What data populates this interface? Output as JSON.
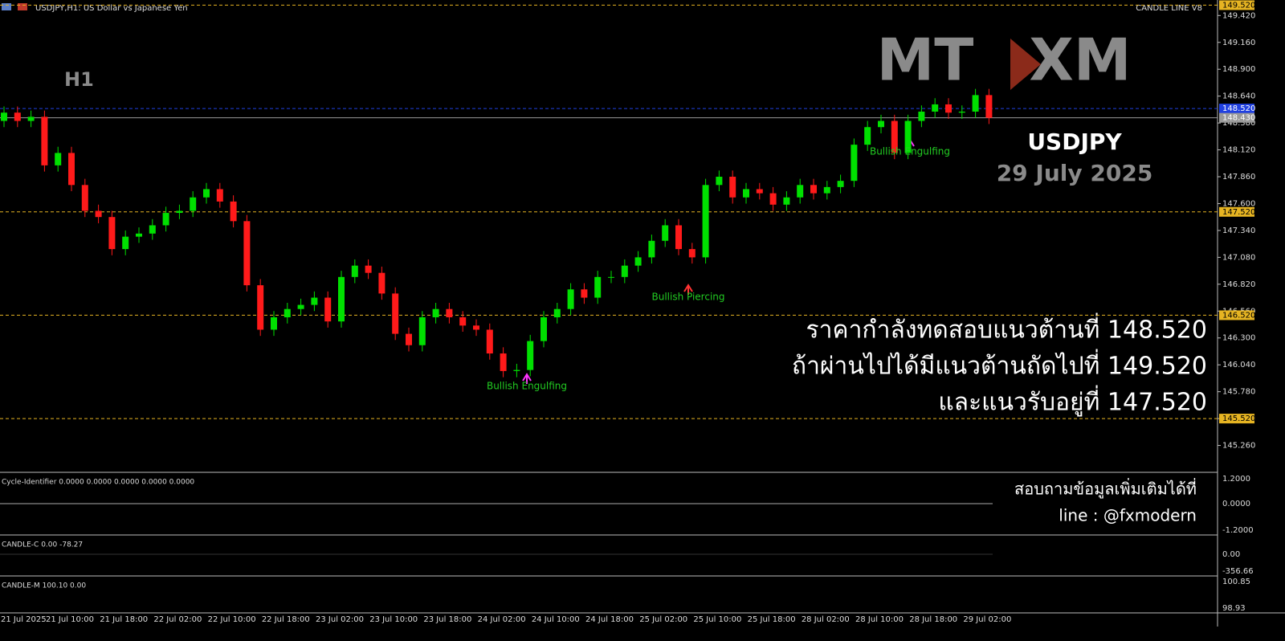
{
  "header": {
    "symbol": "USDJPY,H1: US Dollar vs Japanese Yen",
    "indicator": "CANDLE LINE V8"
  },
  "logos": [
    "MT",
    "XM"
  ],
  "timeframe": "H1",
  "chart_data": {
    "type": "candlestick",
    "title": "USDJPY",
    "subtitle": "29 July 2025",
    "open": [
      148.4,
      148.48,
      148.4,
      148.44,
      147.97,
      148.09,
      147.78,
      147.53,
      147.47,
      147.16,
      147.28,
      147.31,
      147.39,
      147.51,
      147.53,
      147.66,
      147.74,
      147.62,
      147.43,
      146.81,
      146.38,
      146.5,
      146.58,
      146.62,
      146.69,
      146.46,
      146.89,
      147.0,
      146.93,
      146.73,
      146.34,
      146.23,
      146.5,
      146.58,
      146.5,
      146.42,
      146.38,
      146.15,
      145.98,
      145.99,
      146.27,
      146.5,
      146.58,
      146.77,
      146.69,
      146.89,
      146.89,
      147.0,
      147.08,
      147.24,
      147.39,
      147.16,
      147.08,
      147.78,
      147.86,
      147.66,
      147.74,
      147.7,
      147.59,
      147.66,
      147.78,
      147.7,
      147.76,
      147.82,
      148.17,
      148.34,
      148.4,
      148.09,
      148.4,
      148.49,
      148.56,
      148.48,
      148.49,
      148.65
    ],
    "high": [
      148.54,
      148.54,
      148.5,
      148.5,
      148.15,
      148.15,
      147.84,
      147.59,
      147.53,
      147.34,
      147.37,
      147.45,
      147.57,
      147.59,
      147.72,
      147.8,
      147.8,
      147.68,
      147.49,
      146.87,
      146.56,
      146.64,
      146.68,
      146.75,
      146.75,
      146.95,
      147.06,
      147.06,
      146.99,
      146.79,
      146.4,
      146.56,
      146.64,
      146.64,
      146.56,
      146.48,
      146.44,
      146.21,
      146.05,
      146.33,
      146.56,
      146.64,
      146.83,
      146.83,
      146.95,
      146.95,
      147.06,
      147.14,
      147.3,
      147.45,
      147.45,
      147.22,
      147.84,
      147.92,
      147.92,
      147.8,
      147.8,
      147.76,
      147.72,
      147.84,
      147.84,
      147.82,
      147.88,
      148.23,
      148.4,
      148.46,
      148.46,
      148.46,
      148.55,
      148.62,
      148.62,
      148.55,
      148.71,
      148.71
    ],
    "low": [
      148.34,
      148.34,
      148.34,
      147.91,
      147.91,
      147.72,
      147.47,
      147.41,
      147.1,
      147.1,
      147.22,
      147.25,
      147.33,
      147.45,
      147.47,
      147.6,
      147.56,
      147.37,
      146.75,
      146.32,
      146.32,
      146.44,
      146.52,
      146.56,
      146.4,
      146.4,
      146.83,
      146.87,
      146.67,
      146.28,
      146.17,
      146.17,
      146.44,
      146.44,
      146.36,
      146.32,
      146.09,
      145.92,
      145.92,
      145.93,
      146.21,
      146.44,
      146.52,
      146.63,
      146.63,
      146.83,
      146.83,
      146.94,
      147.02,
      147.18,
      147.1,
      147.02,
      147.02,
      147.72,
      147.6,
      147.6,
      147.64,
      147.53,
      147.53,
      147.6,
      147.64,
      147.64,
      147.7,
      147.76,
      148.11,
      148.28,
      148.03,
      148.03,
      148.34,
      148.43,
      148.42,
      148.42,
      148.43,
      148.37
    ],
    "close": [
      148.48,
      148.4,
      148.44,
      147.97,
      148.09,
      147.78,
      147.53,
      147.47,
      147.16,
      147.28,
      147.31,
      147.39,
      147.51,
      147.53,
      147.66,
      147.74,
      147.62,
      147.43,
      146.81,
      146.38,
      146.5,
      146.58,
      146.62,
      146.69,
      146.46,
      146.89,
      147.0,
      146.93,
      146.73,
      146.34,
      146.23,
      146.5,
      146.58,
      146.5,
      146.42,
      146.38,
      146.15,
      145.98,
      145.99,
      146.27,
      146.5,
      146.58,
      146.77,
      146.69,
      146.89,
      146.89,
      147.0,
      147.08,
      147.24,
      147.39,
      147.16,
      147.08,
      147.78,
      147.86,
      147.66,
      147.74,
      147.7,
      147.59,
      147.66,
      147.78,
      147.7,
      147.76,
      147.82,
      148.17,
      148.34,
      148.4,
      148.09,
      148.4,
      148.49,
      148.56,
      148.48,
      148.49,
      148.65,
      148.43
    ],
    "up_color": "#00e000",
    "down_color": "#ff1a1a",
    "ylim": [
      145.0,
      149.57
    ],
    "yticks": [
      {
        "value": 149.42,
        "label": "149.420"
      },
      {
        "value": 149.16,
        "label": "149.160"
      },
      {
        "value": 148.9,
        "label": "148.900"
      },
      {
        "value": 148.64,
        "label": "148.640"
      },
      {
        "value": 148.38,
        "label": "148.380"
      },
      {
        "value": 148.12,
        "label": "148.120"
      },
      {
        "value": 147.86,
        "label": "147.860"
      },
      {
        "value": 147.6,
        "label": "147.600"
      },
      {
        "value": 147.34,
        "label": "147.340"
      },
      {
        "value": 147.08,
        "label": "147.080"
      },
      {
        "value": 146.82,
        "label": "146.820"
      },
      {
        "value": 146.56,
        "label": "146.560"
      },
      {
        "value": 146.3,
        "label": "146.300"
      },
      {
        "value": 146.04,
        "label": "146.040"
      },
      {
        "value": 145.78,
        "label": "145.780"
      },
      {
        "value": 145.52,
        "label": "145.520"
      },
      {
        "value": 145.26,
        "label": "145.260"
      }
    ],
    "levels": [
      {
        "value": 149.52,
        "label": "149.520",
        "color": "#e6b422"
      },
      {
        "value": 148.52,
        "label": "148.520",
        "color": "#2040e0"
      },
      {
        "value": 148.43,
        "label": "148.430",
        "color": "#9a9a9a"
      },
      {
        "value": 147.52,
        "label": "147.520",
        "color": "#e6b422"
      },
      {
        "value": 146.52,
        "label": "146.520",
        "color": "#e6b422"
      },
      {
        "value": 145.52,
        "label": "145.520",
        "color": "#e6b422"
      }
    ],
    "x_labels": [
      "21 Jul 2025",
      "21 Jul 10:00",
      "21 Jul 18:00",
      "22 Jul 02:00",
      "22 Jul 10:00",
      "22 Jul 18:00",
      "23 Jul 02:00",
      "23 Jul 10:00",
      "23 Jul 18:00",
      "24 Jul 02:00",
      "24 Jul 10:00",
      "24 Jul 18:00",
      "25 Jul 02:00",
      "25 Jul 10:00",
      "25 Jul 18:00",
      "28 Jul 02:00",
      "28 Jul 10:00",
      "28 Jul 18:00",
      "29 Jul 02:00"
    ],
    "annotations": [
      "Bullish Engulfing",
      "Bullish Piercing",
      "Bullish Engulfing"
    ]
  },
  "notes": [
    "ราคากำลังทดสอบแนวต้านที่ 148.520",
    "ถ้าผ่านไปได้มีแนวต้านถัดไปที่ 149.520",
    "และแนวรับอยู่ที่ 147.520"
  ],
  "contact": [
    "สอบถามข้อมูลเพิ่มเติมได้ที่",
    "line : @fxmodern"
  ],
  "panels": [
    {
      "title": "Cycle-Identifier 0.0000 0.0000 0.0000 0.0000 0.0000",
      "ticks": [
        "1.2000",
        "0.0000",
        "-1.2000"
      ]
    },
    {
      "title": "CANDLE-C 0.00 -78.27",
      "ticks": [
        "0.00",
        "-356.66"
      ]
    },
    {
      "title": "CANDLE-M 100.10 0.00",
      "ticks": [
        "100.85",
        "98.93"
      ]
    }
  ]
}
